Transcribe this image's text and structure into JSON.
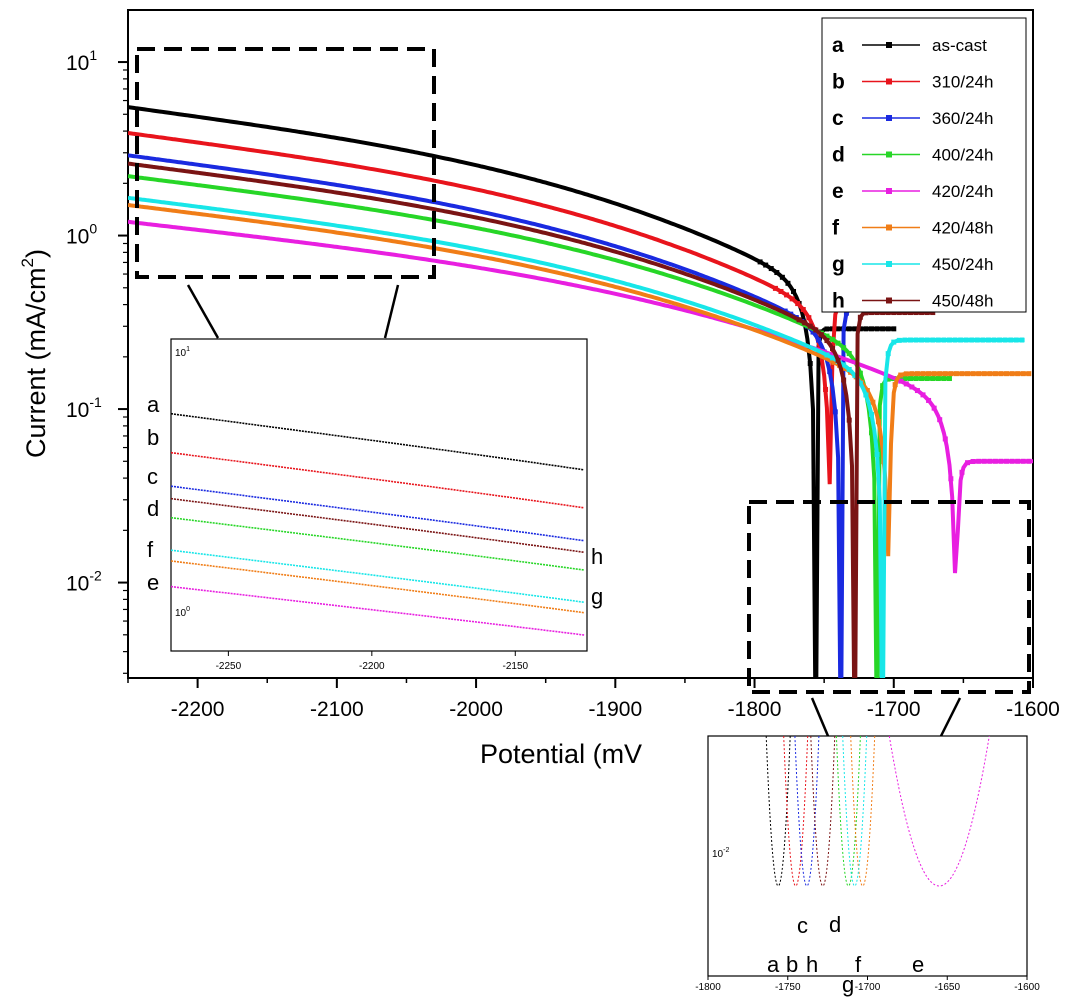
{
  "chart_data": {
    "type": "line",
    "xlabel": "Potential (mV",
    "ylabel": "Current (mA/cm",
    "ylabel_sup": "2",
    "ylabel_tail": ")",
    "xlim": [
      -2250,
      -1600
    ],
    "ylim_log10": [
      -2.55,
      1.3
    ],
    "y_scale": "log",
    "xticks": [
      "-2200",
      "-2100",
      "-2000",
      "-1900",
      "-1800",
      "-1700",
      "-1600"
    ],
    "ytick_base": "10",
    "ytick_exps": [
      "1",
      "0",
      "-1",
      "-2"
    ],
    "legend_position": "top-right",
    "series": [
      {
        "key": "a",
        "name": "as-cast",
        "color": "#000000",
        "marker": "square",
        "ecorr": -1756,
        "start": 5.5,
        "plateau": 0.29,
        "end_x": -1700,
        "k": 8.0
      },
      {
        "key": "b",
        "name": "310/24h",
        "color": "#e8141c",
        "marker": "diamond",
        "ecorr": -1745,
        "start": 3.9,
        "plateau": 0.4,
        "end_x": -1690,
        "k": 7.0
      },
      {
        "key": "c",
        "name": "360/24h",
        "color": "#1a2ae0",
        "marker": "triangle-up",
        "ecorr": -1738,
        "start": 2.9,
        "plateau": 0.38,
        "end_x": -1675,
        "k": 7.0
      },
      {
        "key": "d",
        "name": "400/24h",
        "color": "#27d627",
        "marker": "triangle-down",
        "ecorr": -1712,
        "start": 2.2,
        "plateau": 0.15,
        "end_x": -1660,
        "k": 6.0
      },
      {
        "key": "e",
        "name": "420/24h",
        "color": "#e81fe0",
        "marker": "triangle-left",
        "ecorr": -1655,
        "start": 1.2,
        "plateau": 0.05,
        "end_x": -1600,
        "k": 5.0
      },
      {
        "key": "f",
        "name": "420/48h",
        "color": "#f07d17",
        "marker": "triangle-right",
        "ecorr": -1703,
        "start": 1.5,
        "plateau": 0.16,
        "end_x": -1603,
        "k": 5.0
      },
      {
        "key": "g",
        "name": "450/24h",
        "color": "#18e6e8",
        "marker": "diamond",
        "ecorr": -1708,
        "start": 1.65,
        "plateau": 0.25,
        "end_x": -1605,
        "k": 4.5
      },
      {
        "key": "h",
        "name": "450/48h",
        "color": "#7a1414",
        "marker": "star",
        "ecorr": -1728,
        "start": 2.6,
        "plateau": 0.36,
        "end_x": -1672,
        "k": 7.0
      }
    ],
    "inset_left": {
      "xlim": [
        -2270,
        -2125
      ],
      "xticks": [
        "-2250",
        "-2200",
        "-2150"
      ],
      "ytick_base": "10",
      "ytick_exps": [
        "1",
        "0"
      ],
      "side_labels": [
        "a",
        "b",
        "c",
        "d",
        "f",
        "e"
      ],
      "right_labels": [
        "h",
        "g"
      ]
    },
    "inset_right": {
      "xlim": [
        -1800,
        -1600
      ],
      "xticks": [
        "-1800",
        "-1750",
        "-1700",
        "-1650",
        "-1600"
      ],
      "ytick_base": "10",
      "ytick_exp": "-2",
      "bottom_labels": [
        "a",
        "b",
        "h",
        "c",
        "d",
        "g",
        "f",
        "e"
      ]
    }
  }
}
